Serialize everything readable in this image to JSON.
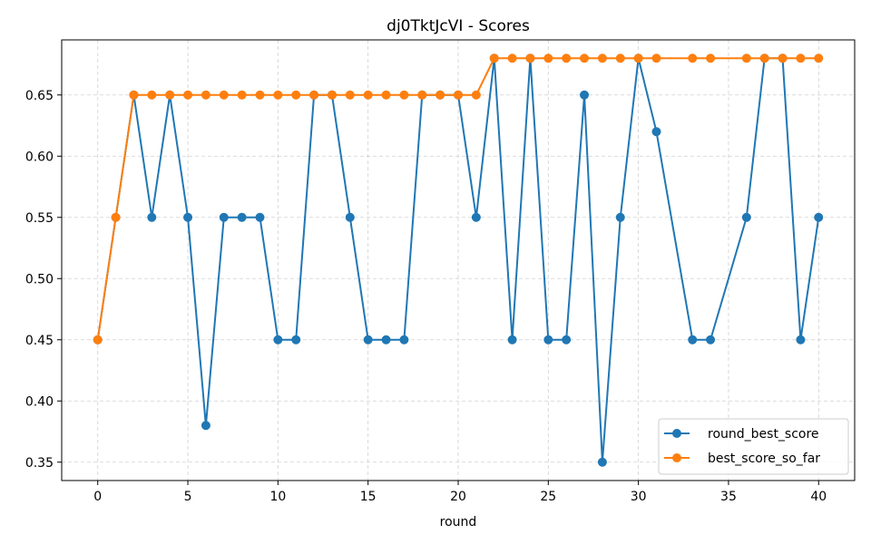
{
  "chart_data": {
    "type": "line",
    "title": "dj0TktJcVI - Scores",
    "xlabel": "round",
    "ylabel": "",
    "xlim": [
      -2,
      42
    ],
    "ylim": [
      0.335,
      0.695
    ],
    "xticks": [
      0,
      5,
      10,
      15,
      20,
      25,
      30,
      35,
      40
    ],
    "yticks": [
      0.35,
      0.4,
      0.45,
      0.5,
      0.55,
      0.6,
      0.65
    ],
    "ytick_labels": [
      "0.35",
      "0.40",
      "0.45",
      "0.50",
      "0.55",
      "0.60",
      "0.65"
    ],
    "grid": true,
    "legend_position": "lower-right",
    "series": [
      {
        "name": "round_best_score",
        "color": "#1f77b4",
        "x": [
          0,
          1,
          2,
          3,
          4,
          5,
          6,
          7,
          8,
          9,
          10,
          11,
          12,
          13,
          14,
          15,
          16,
          17,
          18,
          19,
          20,
          21,
          22,
          23,
          24,
          25,
          26,
          27,
          28,
          29,
          30,
          31,
          33,
          34,
          36,
          37,
          38,
          39,
          40
        ],
        "y": [
          0.45,
          0.55,
          0.65,
          0.55,
          0.65,
          0.55,
          0.38,
          0.55,
          0.55,
          0.55,
          0.45,
          0.45,
          0.65,
          0.65,
          0.55,
          0.45,
          0.45,
          0.45,
          0.65,
          0.65,
          0.65,
          0.55,
          0.68,
          0.45,
          0.68,
          0.45,
          0.45,
          0.65,
          0.35,
          0.55,
          0.68,
          0.62,
          0.45,
          0.45,
          0.55,
          0.68,
          0.68,
          0.45,
          0.55
        ]
      },
      {
        "name": "best_score_so_far",
        "color": "#ff7f0e",
        "x": [
          0,
          1,
          2,
          3,
          4,
          5,
          6,
          7,
          8,
          9,
          10,
          11,
          12,
          13,
          14,
          15,
          16,
          17,
          18,
          19,
          20,
          21,
          22,
          23,
          24,
          25,
          26,
          27,
          28,
          29,
          30,
          31,
          33,
          34,
          36,
          37,
          38,
          39,
          40
        ],
        "y": [
          0.45,
          0.55,
          0.65,
          0.65,
          0.65,
          0.65,
          0.65,
          0.65,
          0.65,
          0.65,
          0.65,
          0.65,
          0.65,
          0.65,
          0.65,
          0.65,
          0.65,
          0.65,
          0.65,
          0.65,
          0.65,
          0.65,
          0.68,
          0.68,
          0.68,
          0.68,
          0.68,
          0.68,
          0.68,
          0.68,
          0.68,
          0.68,
          0.68,
          0.68,
          0.68,
          0.68,
          0.68,
          0.68,
          0.68
        ]
      }
    ]
  }
}
